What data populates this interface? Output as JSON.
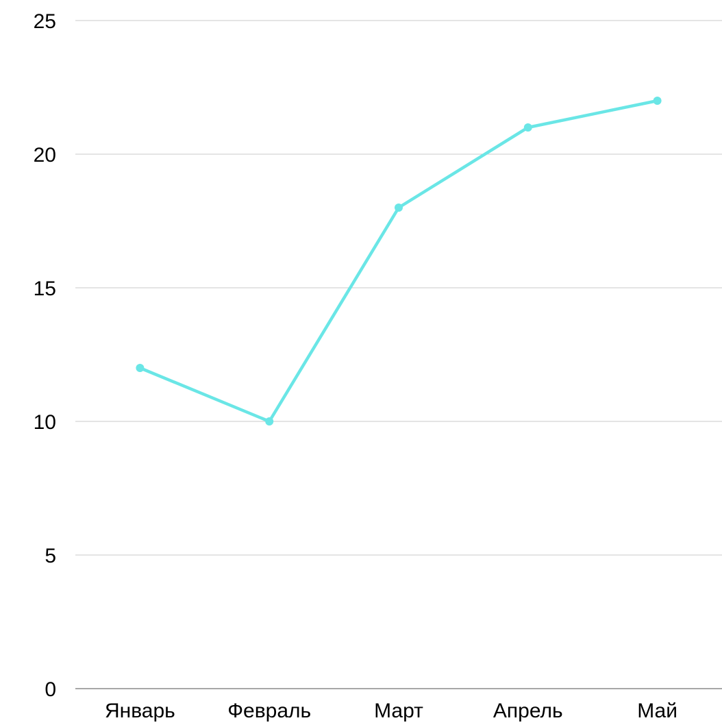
{
  "chart_data": {
    "type": "line",
    "categories": [
      "Январь",
      "Февраль",
      "Март",
      "Апрель",
      "Май"
    ],
    "series": [
      {
        "values": [
          12,
          10,
          18,
          21,
          22
        ]
      }
    ],
    "ylim": [
      0,
      25
    ],
    "yticks": [
      0,
      5,
      10,
      15,
      20,
      25
    ],
    "grid": true,
    "legend": "none",
    "colors": {
      "line": "#6ae6e6",
      "grid": "#c8c8c8",
      "axis": "#8a8a8a",
      "text": "#000000"
    }
  }
}
